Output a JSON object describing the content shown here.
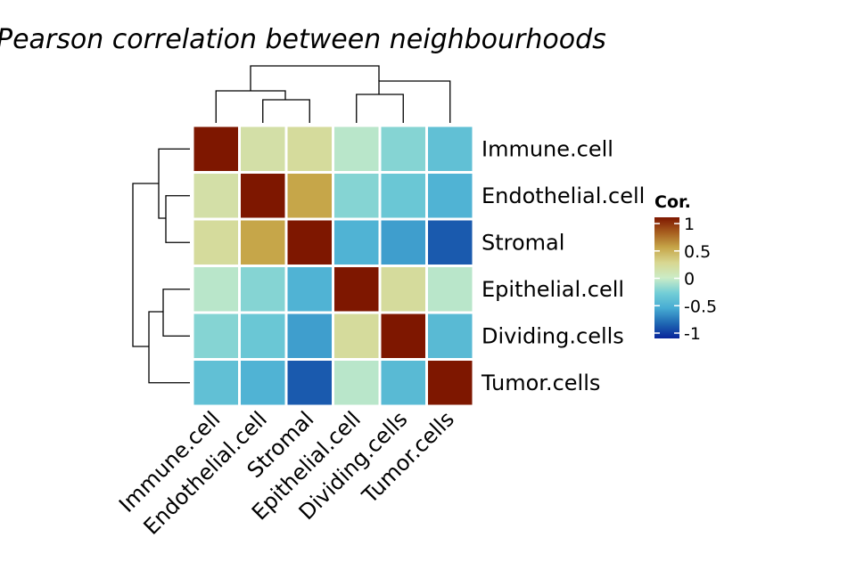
{
  "chart_data": {
    "type": "heatmap",
    "title": "Pearson correlation between neighbourhoods",
    "rows": [
      "Immune.cell",
      "Endothelial.cell",
      "Stromal",
      "Epithelial.cell",
      "Dividing.cells",
      "Tumor.cells"
    ],
    "columns": [
      "Immune.cell",
      "Endothelial.cell",
      "Stromal",
      "Epithelial.cell",
      "Dividing.cells",
      "Tumor.cells"
    ],
    "values": [
      [
        1.0,
        0.15,
        0.2,
        -0.05,
        -0.2,
        -0.35
      ],
      [
        0.15,
        1.0,
        0.5,
        -0.2,
        -0.3,
        -0.45
      ],
      [
        0.2,
        0.5,
        1.0,
        -0.45,
        -0.55,
        -0.8
      ],
      [
        -0.05,
        -0.2,
        -0.45,
        1.0,
        0.2,
        -0.05
      ],
      [
        -0.2,
        -0.3,
        -0.55,
        0.2,
        1.0,
        -0.4
      ],
      [
        -0.35,
        -0.45,
        -0.8,
        -0.05,
        -0.4,
        1.0
      ]
    ],
    "legend": {
      "title": "Cor.",
      "range": [
        -1,
        1
      ],
      "ticks": [
        1,
        0.5,
        0,
        -0.5,
        -1
      ],
      "tick_labels": [
        "1",
        "0.5",
        "0",
        "-0.5",
        "-1"
      ],
      "placement": "right"
    },
    "color_stops": [
      {
        "value": -1,
        "color": "#08249a"
      },
      {
        "value": -0.75,
        "color": "#1f68b3"
      },
      {
        "value": -0.5,
        "color": "#47acd3"
      },
      {
        "value": -0.25,
        "color": "#73ced6"
      },
      {
        "value": 0,
        "color": "#cbecc7"
      },
      {
        "value": 0.25,
        "color": "#d8d791"
      },
      {
        "value": 0.5,
        "color": "#c6a649"
      },
      {
        "value": 0.75,
        "color": "#a75e1f"
      },
      {
        "value": 1,
        "color": "#7e1700"
      }
    ],
    "row_dendrogram": true,
    "column_dendrogram": true,
    "grid": false
  }
}
